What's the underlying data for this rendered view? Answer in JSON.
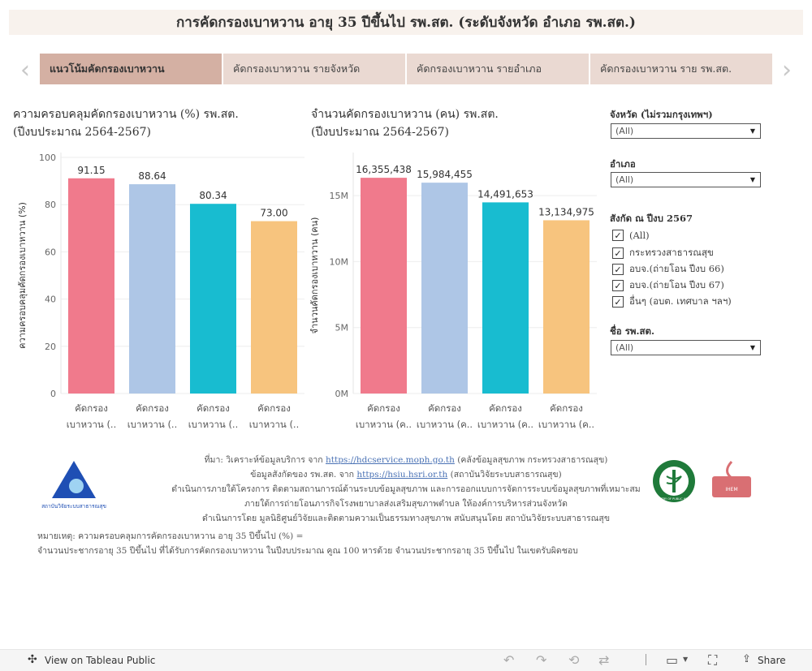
{
  "title": "การคัดกรองเบาหวาน อายุ 35 ปีขึ้นไป รพ.สต. (ระดับจังหวัด อำเภอ รพ.สต.)",
  "nav": {
    "prev_icon": "chevron-left-icon",
    "next_icon": "chevron-right-icon",
    "prev": "‹",
    "next": "›"
  },
  "tabs": [
    {
      "label": "แนวโน้มคัดกรองเบาหวาน"
    },
    {
      "label": "คัดกรองเบาหวาน รายจังหวัด"
    },
    {
      "label": "คัดกรองเบาหวาน รายอำเภอ"
    },
    {
      "label": "คัดกรองเบาหวาน ราย รพ.สต."
    }
  ],
  "chart_data": [
    {
      "type": "bar",
      "title_line1": "ความครอบคลุมคัดกรองเบาหวาน (%) รพ.สต.",
      "title_line2": "(ปีงบประมาณ 2564-2567)",
      "ylabel": "ความครอบคลุมคัดกรองเบาหวาน (%)",
      "ylim": [
        0,
        100
      ],
      "yticks": [
        0,
        20,
        40,
        60,
        80,
        100
      ],
      "ytick_labels": [
        "0",
        "20",
        "40",
        "60",
        "80",
        "100"
      ],
      "categories": [
        [
          "คัดกรอง",
          "เบาหวาน (.."
        ],
        [
          "คัดกรอง",
          "เบาหวาน (.."
        ],
        [
          "คัดกรอง",
          "เบาหวาน (.."
        ],
        [
          "คัดกรอง",
          "เบาหวาน (.."
        ]
      ],
      "values": [
        91.15,
        88.64,
        80.34,
        73.0
      ],
      "value_labels": [
        "91.15",
        "88.64",
        "80.34",
        "73.00"
      ],
      "colors": [
        "#f07a8c",
        "#aec6e6",
        "#18bcd0",
        "#f7c47e"
      ]
    },
    {
      "type": "bar",
      "title_line1": "จำนวนคัดกรองเบาหวาน (คน) รพ.สต.",
      "title_line2": "(ปีงบประมาณ 2564-2567)",
      "ylabel": "จำนวนคัดกรองเบาหวาน (คน)",
      "ylim": [
        0,
        17900000
      ],
      "yticks": [
        0,
        5000000,
        10000000,
        15000000
      ],
      "ytick_labels": [
        "0M",
        "5M",
        "10M",
        "15M"
      ],
      "categories": [
        [
          "คัดกรอง",
          "เบาหวาน (ค.."
        ],
        [
          "คัดกรอง",
          "เบาหวาน (ค.."
        ],
        [
          "คัดกรอง",
          "เบาหวาน (ค.."
        ],
        [
          "คัดกรอง",
          "เบาหวาน (ค.."
        ]
      ],
      "values": [
        16355438,
        15984455,
        14491653,
        13134975
      ],
      "value_labels": [
        "16,355,438",
        "15,984,455",
        "14,491,653",
        "13,134,975"
      ],
      "colors": [
        "#f07a8c",
        "#aec6e6",
        "#18bcd0",
        "#f7c47e"
      ]
    }
  ],
  "filters": {
    "province": {
      "label": "จังหวัด (ไม่รวมกรุงเทพฯ)",
      "value": "(All)"
    },
    "district": {
      "label": "อำเภอ",
      "value": "(All)"
    },
    "affiliation": {
      "label": "สังกัด ณ ปีงบ 2567",
      "options": [
        "(All)",
        "กระทรวงสาธารณสุข",
        "อบจ.(ถ่ายโอน ปีงบ 66)",
        "อบจ.(ถ่ายโอน ปีงบ 67)",
        "อื่นๆ (อบต. เทศบาล ฯลฯ)"
      ],
      "checkmark": "✓"
    },
    "facility": {
      "label": "ชื่อ รพ.สต.",
      "value": "(All)"
    },
    "caret": "▼"
  },
  "source": {
    "line1_prefix": "ที่มา: วิเคราะห์ข้อมูลบริการ จาก",
    "line1_link": "https://hdcservice.moph.go.th",
    "line1_suffix": "(คลังข้อมูลสุขภาพ กระทรวงสาธารณสุข)",
    "line2_prefix": "ข้อมูลสังกัดของ รพ.สต. จาก",
    "line2_link": "https://hsiu.hsri.or.th",
    "line2_suffix": "(สถาบันวิจัยระบบสาธารณสุข)",
    "line3": "ดำเนินการภายใต้โครงการ ติดตามสถานการณ์ด้านระบบข้อมูลสุขภาพ และการออกแบบการจัดการระบบข้อมูลสุขภาพที่เหมาะสม",
    "line4": "ภายใต้การถ่ายโอนภารกิจโรงพยาบาลส่งเสริมสุขภาพตำบล ให้องค์การบริหารส่วนจังหวัด",
    "line5": "ดำเนินการโดย มูลนิธิศูนย์วิจัยและติดตามความเป็นธรรมทางสุขภาพ สนับสนุนโดย สถาบันวิจัยระบบสาธารณสุข"
  },
  "note": {
    "line1": "หมายเหตุ: ความครอบคลุมการคัดกรองเบาหวาน อายุ 35 ปีขึ้นไป (%) =",
    "line2": "จำนวนประชากรอายุ 35 ปีขึ้นไป ที่ได้รับการคัดกรองเบาหวาน ในปีงบประมาณ คูณ 100 หารด้วย จำนวนประชากรอายุ 35 ปีขึ้นไป ในเขตรับผิดชอบ"
  },
  "logos": {
    "hsri_caption": "สถาบันวิจัยระบบสาธารณสุข",
    "moph_caption": "MINISTRY OF PUBLIC HEALTH",
    "ihem_caption": "IHEM"
  },
  "toolbar": {
    "view_label": "View on Tableau Public",
    "share_label": "Share",
    "undo": "↶",
    "redo": "↷",
    "revert": "⟲",
    "refresh": "⇄",
    "comment": "▭",
    "fullscreen": "⛶",
    "share_icon": "⋘"
  }
}
